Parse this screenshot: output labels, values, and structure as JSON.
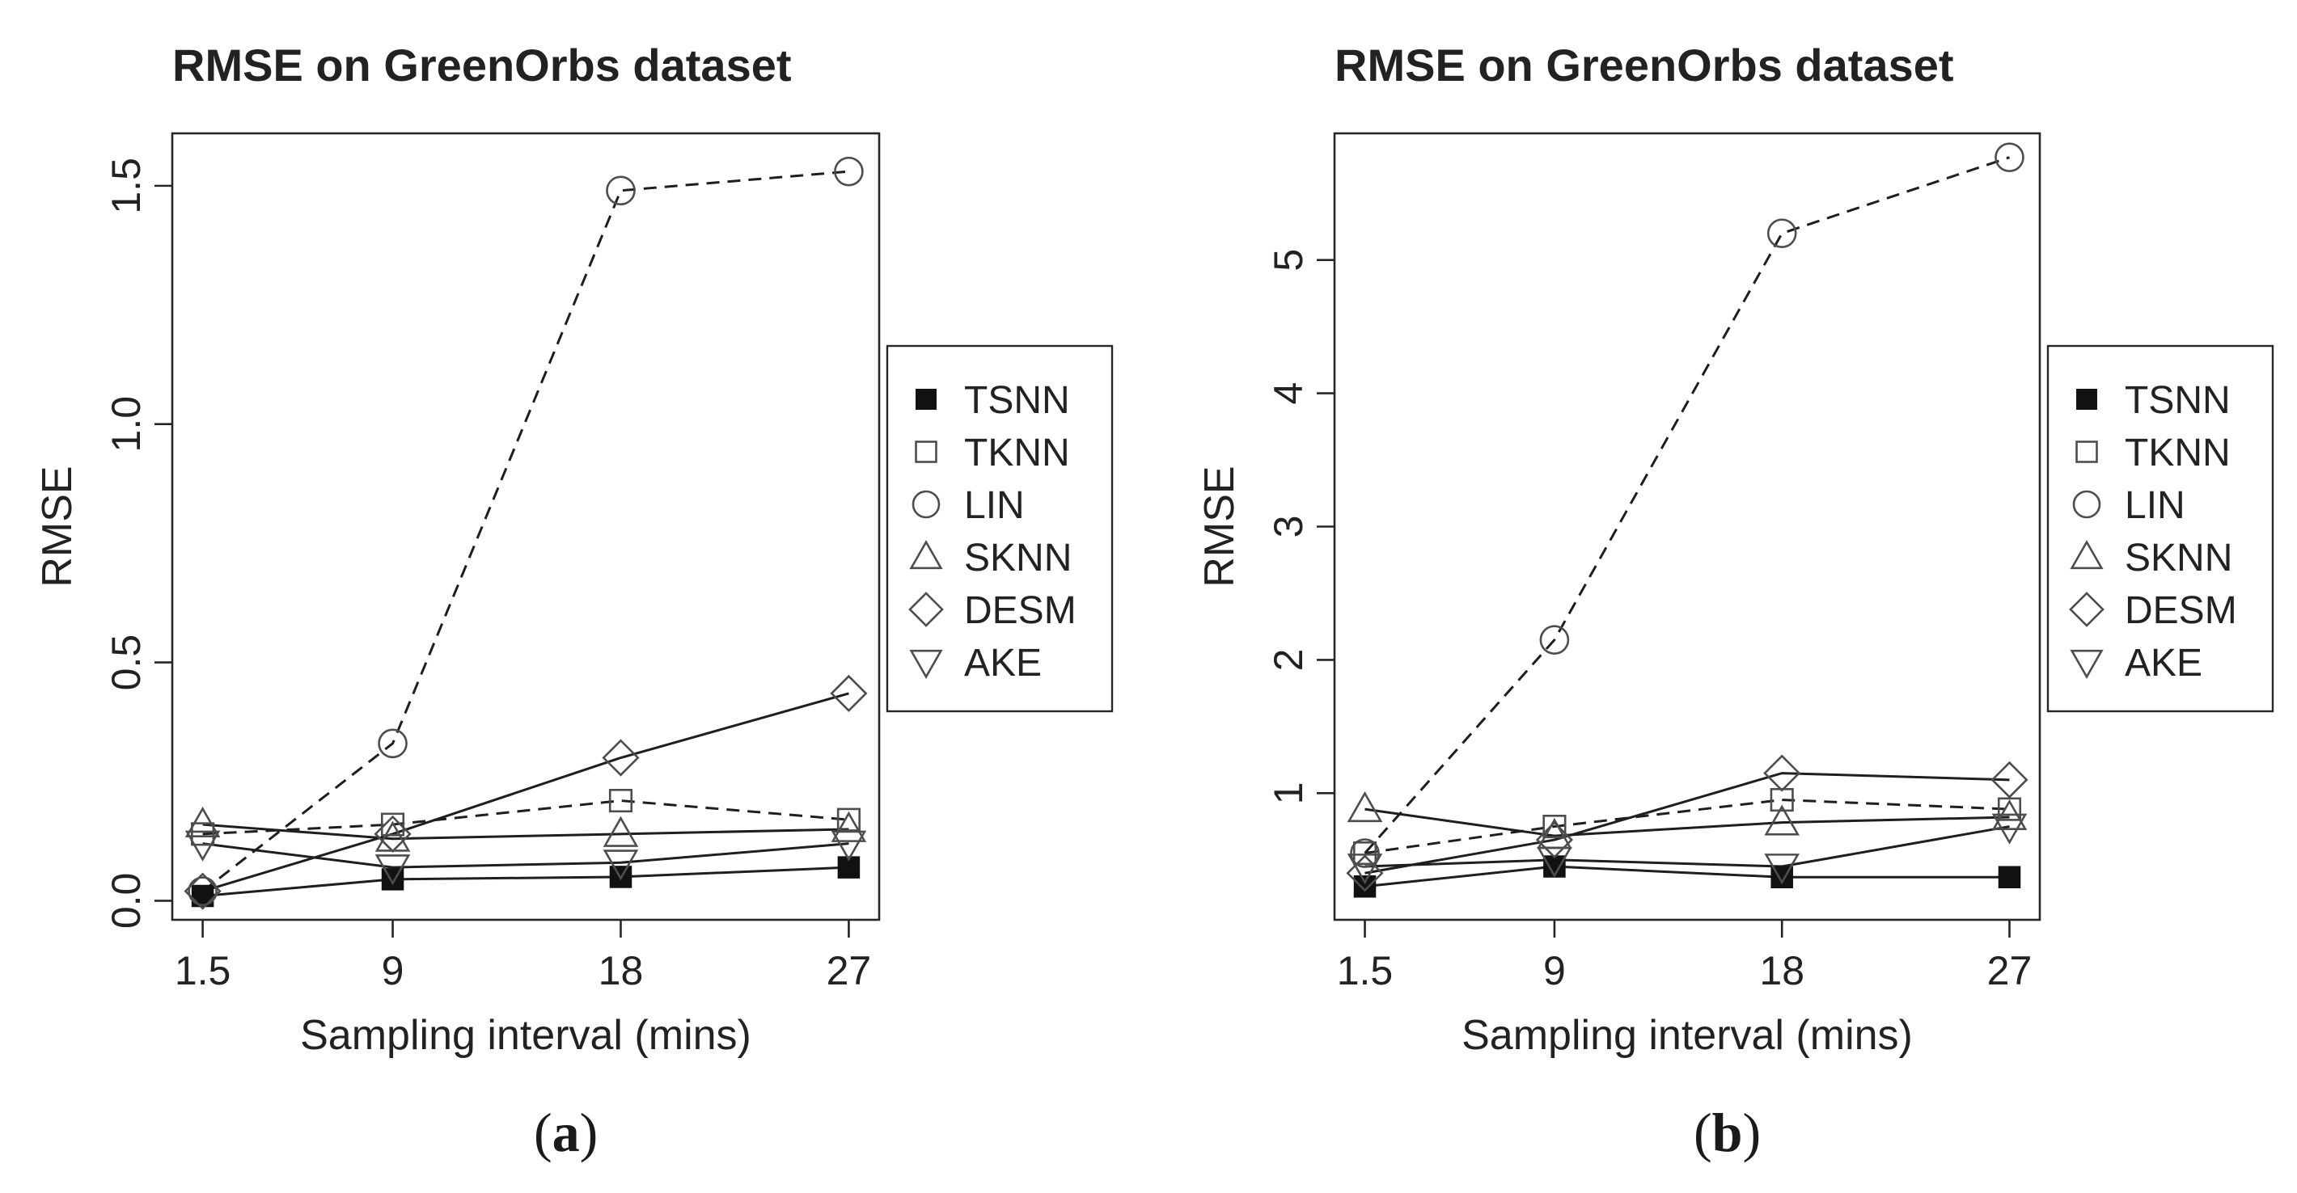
{
  "chart_data": [
    {
      "type": "line",
      "panel": "(a)",
      "panel_letter": "a",
      "title": "RMSE on GreenOrbs dataset",
      "xlabel": "Sampling interval (mins)",
      "ylabel": "RMSE",
      "x": [
        1.5,
        9,
        18,
        27
      ],
      "xticks": [
        "1.5",
        "9",
        "18",
        "27"
      ],
      "xlim": [
        0.3,
        28.2
      ],
      "ylim": [
        -0.04,
        1.61
      ],
      "yticks": [
        "0.0",
        "0.5",
        "1.0",
        "1.5"
      ],
      "ytick_values": [
        0,
        0.5,
        1.0,
        1.5
      ],
      "series": [
        {
          "name": "TSNN",
          "marker": "filled-square",
          "linestyle": "solid",
          "values": [
            0.01,
            0.045,
            0.05,
            0.07
          ]
        },
        {
          "name": "TKNN",
          "marker": "open-square",
          "linestyle": "dashed",
          "values": [
            0.14,
            0.16,
            0.21,
            0.17
          ]
        },
        {
          "name": "LIN",
          "marker": "circle",
          "linestyle": "dashed",
          "values": [
            0.02,
            0.33,
            1.49,
            1.53
          ]
        },
        {
          "name": "SKNN",
          "marker": "triangle-up",
          "linestyle": "solid",
          "values": [
            0.16,
            0.13,
            0.14,
            0.15
          ]
        },
        {
          "name": "DESM",
          "marker": "diamond",
          "linestyle": "solid",
          "values": [
            0.02,
            0.14,
            0.3,
            0.435
          ]
        },
        {
          "name": "AKE",
          "marker": "triangle-down",
          "linestyle": "solid",
          "values": [
            0.12,
            0.07,
            0.08,
            0.12
          ]
        }
      ]
    },
    {
      "type": "line",
      "panel": "(b)",
      "panel_letter": "b",
      "title": "RMSE on GreenOrbs dataset",
      "xlabel": "Sampling interval (mins)",
      "ylabel": "RMSE",
      "x": [
        1.5,
        9,
        18,
        27
      ],
      "xticks": [
        "1.5",
        "9",
        "18",
        "27"
      ],
      "xlim": [
        0.3,
        28.2
      ],
      "ylim": [
        0.05,
        5.95
      ],
      "yticks": [
        "1",
        "2",
        "3",
        "4",
        "5"
      ],
      "ytick_values": [
        1,
        2,
        3,
        4,
        5
      ],
      "series": [
        {
          "name": "TSNN",
          "marker": "filled-square",
          "linestyle": "solid",
          "values": [
            0.3,
            0.45,
            0.37,
            0.37
          ]
        },
        {
          "name": "TKNN",
          "marker": "open-square",
          "linestyle": "dashed",
          "values": [
            0.55,
            0.75,
            0.95,
            0.88
          ]
        },
        {
          "name": "LIN",
          "marker": "circle",
          "linestyle": "dashed",
          "values": [
            0.55,
            2.15,
            5.2,
            5.77
          ]
        },
        {
          "name": "SKNN",
          "marker": "triangle-up",
          "linestyle": "solid",
          "values": [
            0.88,
            0.68,
            0.78,
            0.82
          ]
        },
        {
          "name": "DESM",
          "marker": "diamond",
          "linestyle": "solid",
          "values": [
            0.4,
            0.65,
            1.15,
            1.1
          ]
        },
        {
          "name": "AKE",
          "marker": "triangle-down",
          "linestyle": "solid",
          "values": [
            0.45,
            0.5,
            0.45,
            0.75
          ]
        }
      ]
    }
  ]
}
